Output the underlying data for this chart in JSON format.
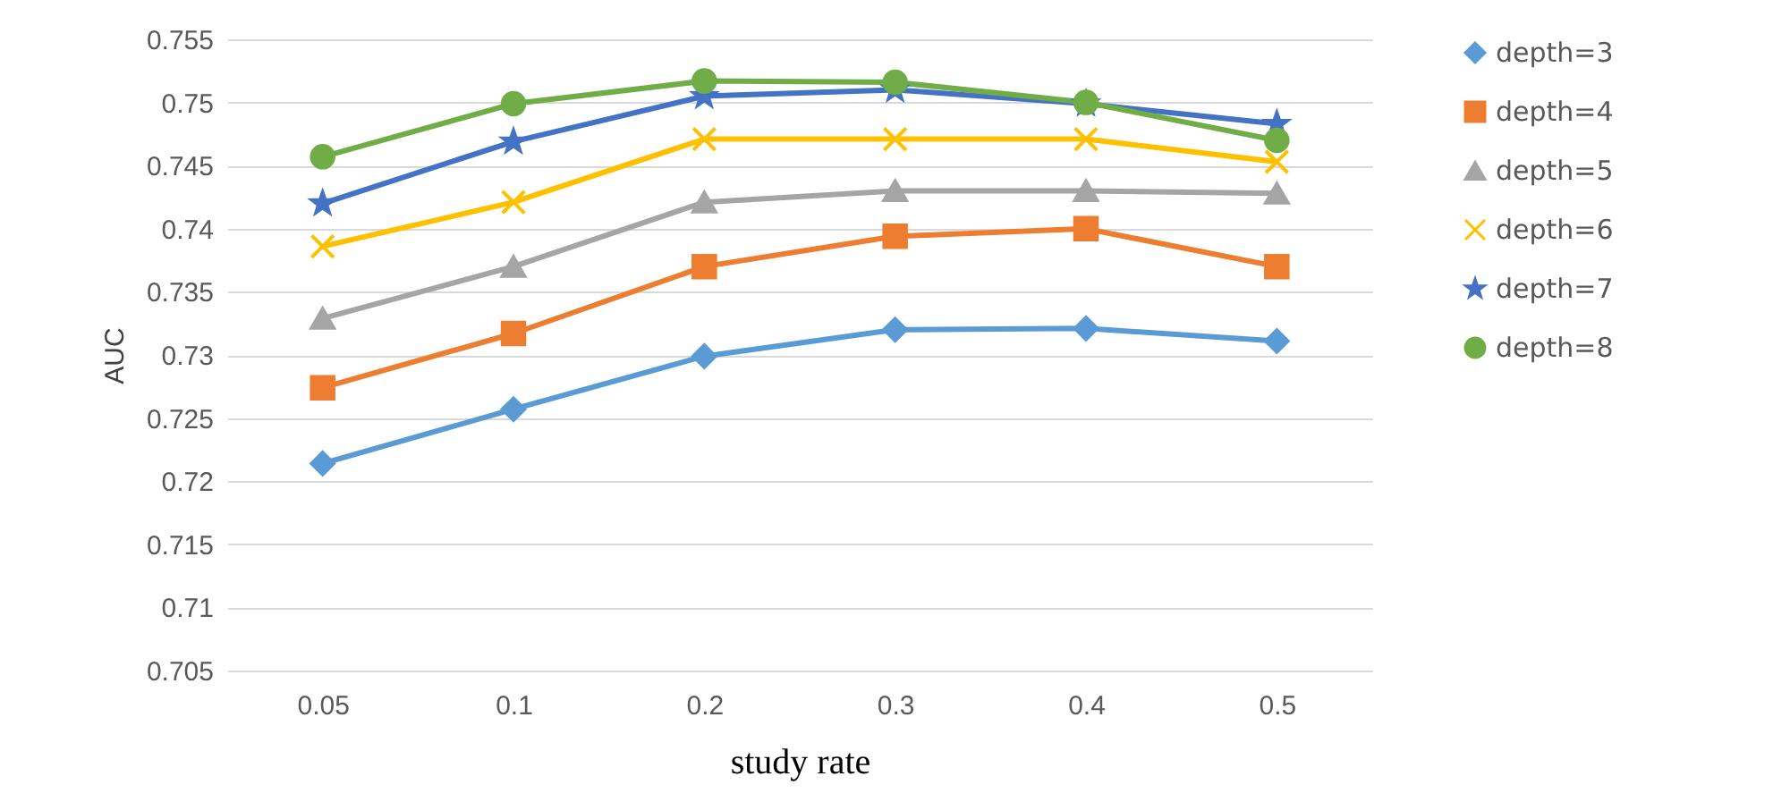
{
  "chart_data": {
    "type": "line",
    "xlabel": "study rate",
    "ylabel": "AUC",
    "categories": [
      "0.05",
      "0.1",
      "0.2",
      "0.3",
      "0.4",
      "0.5"
    ],
    "series": [
      {
        "name": "depth=3",
        "color": "#5b9bd5",
        "marker": "diamond",
        "values": [
          0.7214,
          0.7257,
          0.7299,
          0.732,
          0.7321,
          0.7311
        ]
      },
      {
        "name": "depth=4",
        "color": "#ed7d31",
        "marker": "square",
        "values": [
          0.7274,
          0.7317,
          0.737,
          0.7394,
          0.74,
          0.737
        ]
      },
      {
        "name": "depth=5",
        "color": "#a5a5a5",
        "marker": "triangle",
        "values": [
          0.7329,
          0.737,
          0.7421,
          0.743,
          0.743,
          0.7428
        ]
      },
      {
        "name": "depth=6",
        "color": "#ffc000",
        "marker": "cross",
        "values": [
          0.7386,
          0.7421,
          0.7471,
          0.7471,
          0.7471,
          0.7453
        ]
      },
      {
        "name": "depth=7",
        "color": "#4472c4",
        "marker": "star",
        "values": [
          0.742,
          0.7469,
          0.7505,
          0.751,
          0.7499,
          0.7483
        ]
      },
      {
        "name": "depth=8",
        "color": "#70ad47",
        "marker": "circle",
        "values": [
          0.7457,
          0.7499,
          0.7517,
          0.7516,
          0.75,
          0.747
        ]
      }
    ],
    "ylim": [
      0.705,
      0.755
    ],
    "yticks": [
      0.705,
      0.71,
      0.715,
      0.72,
      0.725,
      0.73,
      0.735,
      0.74,
      0.745,
      0.75,
      0.755
    ],
    "grid": "y",
    "legend": "right",
    "line_style": "solid"
  }
}
